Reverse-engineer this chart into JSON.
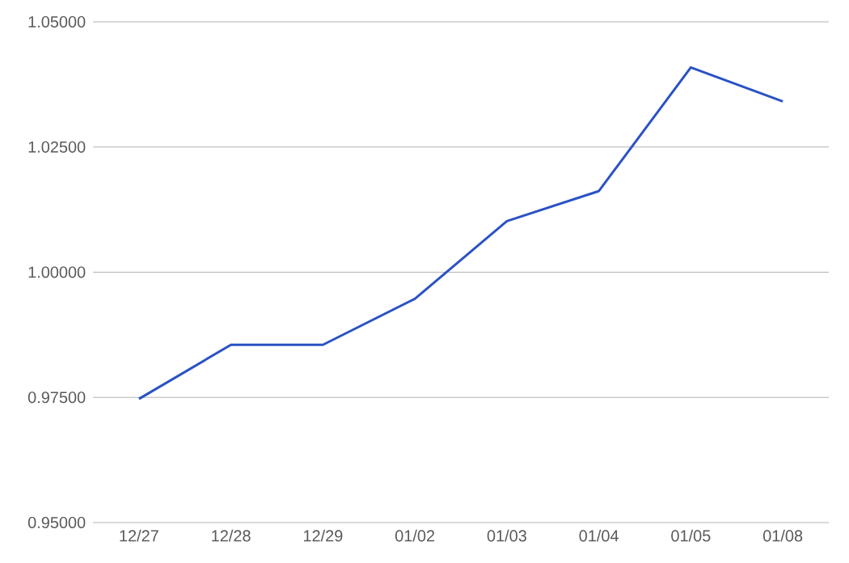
{
  "chart_data": {
    "type": "line",
    "categories": [
      "12/27",
      "12/28",
      "12/29",
      "01/02",
      "01/03",
      "01/04",
      "01/05",
      "01/08"
    ],
    "values": [
      0.9747,
      0.9855,
      0.9855,
      0.9947,
      1.0102,
      1.0162,
      1.0409,
      1.0341
    ],
    "color": "#2a52c4",
    "ylim": [
      0.95,
      1.05
    ],
    "yticks": [
      {
        "value": 0.95,
        "label": "0.95000"
      },
      {
        "value": 0.975,
        "label": "0.97500"
      },
      {
        "value": 1.0,
        "label": "1.00000"
      },
      {
        "value": 1.025,
        "label": "1.02500"
      },
      {
        "value": 1.05,
        "label": "1.05000"
      }
    ],
    "grid": "y",
    "marker": "none",
    "line_style": "solid"
  }
}
